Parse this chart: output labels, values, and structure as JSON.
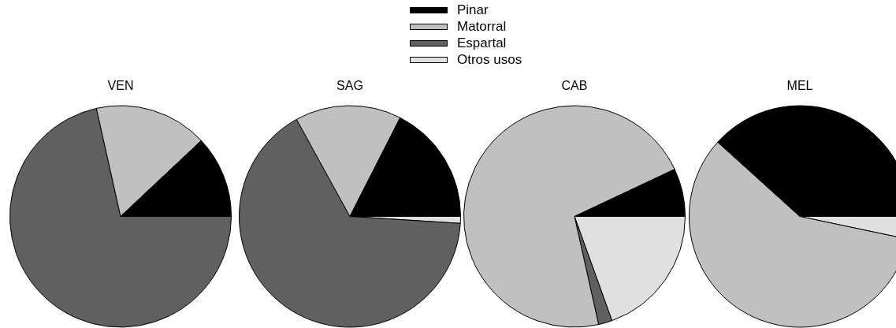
{
  "chart_data": [
    {
      "type": "pie",
      "title": "VEN",
      "categories": [
        "Pinar",
        "Matorral",
        "Espartal",
        "Otros usos"
      ],
      "values": [
        12,
        16.5,
        71.5,
        0
      ],
      "colors": [
        "#000000",
        "#c0c0c0",
        "#606060",
        "#e0e0e0"
      ],
      "legend": "top"
    },
    {
      "type": "pie",
      "title": "SAG",
      "values": [
        17.5,
        15.5,
        66,
        1
      ],
      "colors": [
        "#000000",
        "#c0c0c0",
        "#606060",
        "#e0e0e0"
      ]
    },
    {
      "type": "pie",
      "title": "CAB",
      "values": [
        7,
        71.5,
        2,
        19.5
      ],
      "colors": [
        "#000000",
        "#c0c0c0",
        "#606060",
        "#e0e0e0"
      ]
    },
    {
      "type": "pie",
      "title": "MEL",
      "values": [
        38.3,
        58.4,
        0,
        3.3
      ],
      "colors": [
        "#000000",
        "#c0c0c0",
        "#606060",
        "#e0e0e0"
      ]
    }
  ]
}
